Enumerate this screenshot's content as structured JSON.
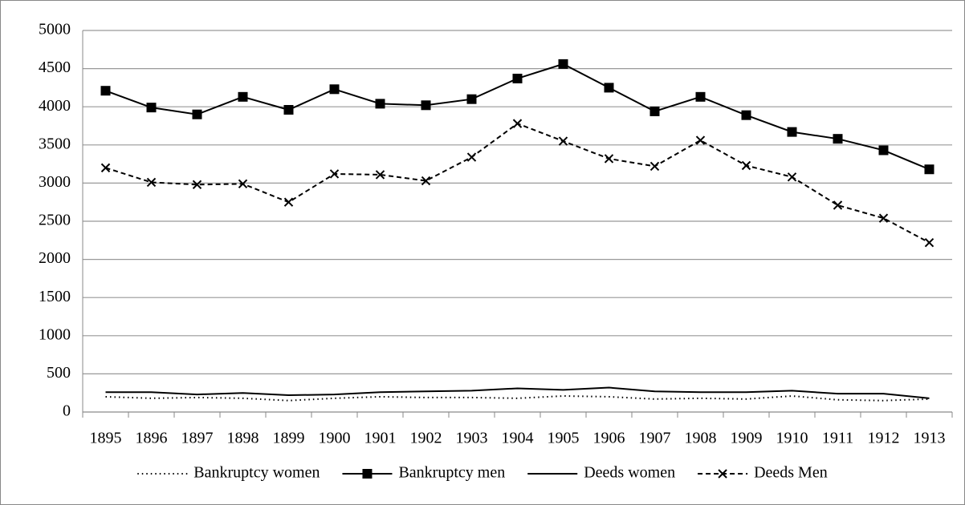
{
  "chart_data": {
    "type": "line",
    "categories": [
      "1895",
      "1896",
      "1897",
      "1898",
      "1899",
      "1900",
      "1901",
      "1902",
      "1903",
      "1904",
      "1905",
      "1906",
      "1907",
      "1908",
      "1909",
      "1910",
      "1911",
      "1912",
      "1913"
    ],
    "series": [
      {
        "name": "Bankruptcy women",
        "color": "#000000",
        "dash": "dotted",
        "marker": "none",
        "values": [
          200,
          180,
          190,
          180,
          150,
          180,
          200,
          190,
          190,
          180,
          210,
          200,
          170,
          180,
          170,
          210,
          160,
          150,
          170
        ]
      },
      {
        "name": "Bankruptcy men",
        "color": "#000000",
        "dash": "solid",
        "marker": "square",
        "values": [
          4210,
          3990,
          3900,
          4130,
          3960,
          4230,
          4040,
          4020,
          4100,
          4370,
          4560,
          4250,
          3940,
          4130,
          3890,
          3670,
          3580,
          3430,
          3180
        ]
      },
      {
        "name": "Deeds women",
        "color": "#000000",
        "dash": "solid",
        "marker": "none",
        "values": [
          260,
          260,
          230,
          250,
          220,
          230,
          260,
          270,
          280,
          310,
          290,
          320,
          270,
          260,
          260,
          280,
          240,
          240,
          180
        ]
      },
      {
        "name": "Deeds Men",
        "color": "#000000",
        "dash": "dashed",
        "marker": "x",
        "values": [
          3200,
          3010,
          2980,
          2990,
          2750,
          3120,
          3110,
          3030,
          3340,
          3780,
          3550,
          3320,
          3220,
          3560,
          3230,
          3080,
          2710,
          2540,
          2220
        ]
      }
    ],
    "ylim": [
      0,
      5000
    ],
    "yticks": [
      0,
      500,
      1000,
      1500,
      2000,
      2500,
      3000,
      3500,
      4000,
      4500,
      5000
    ],
    "grid": true,
    "legend": "bottom"
  }
}
